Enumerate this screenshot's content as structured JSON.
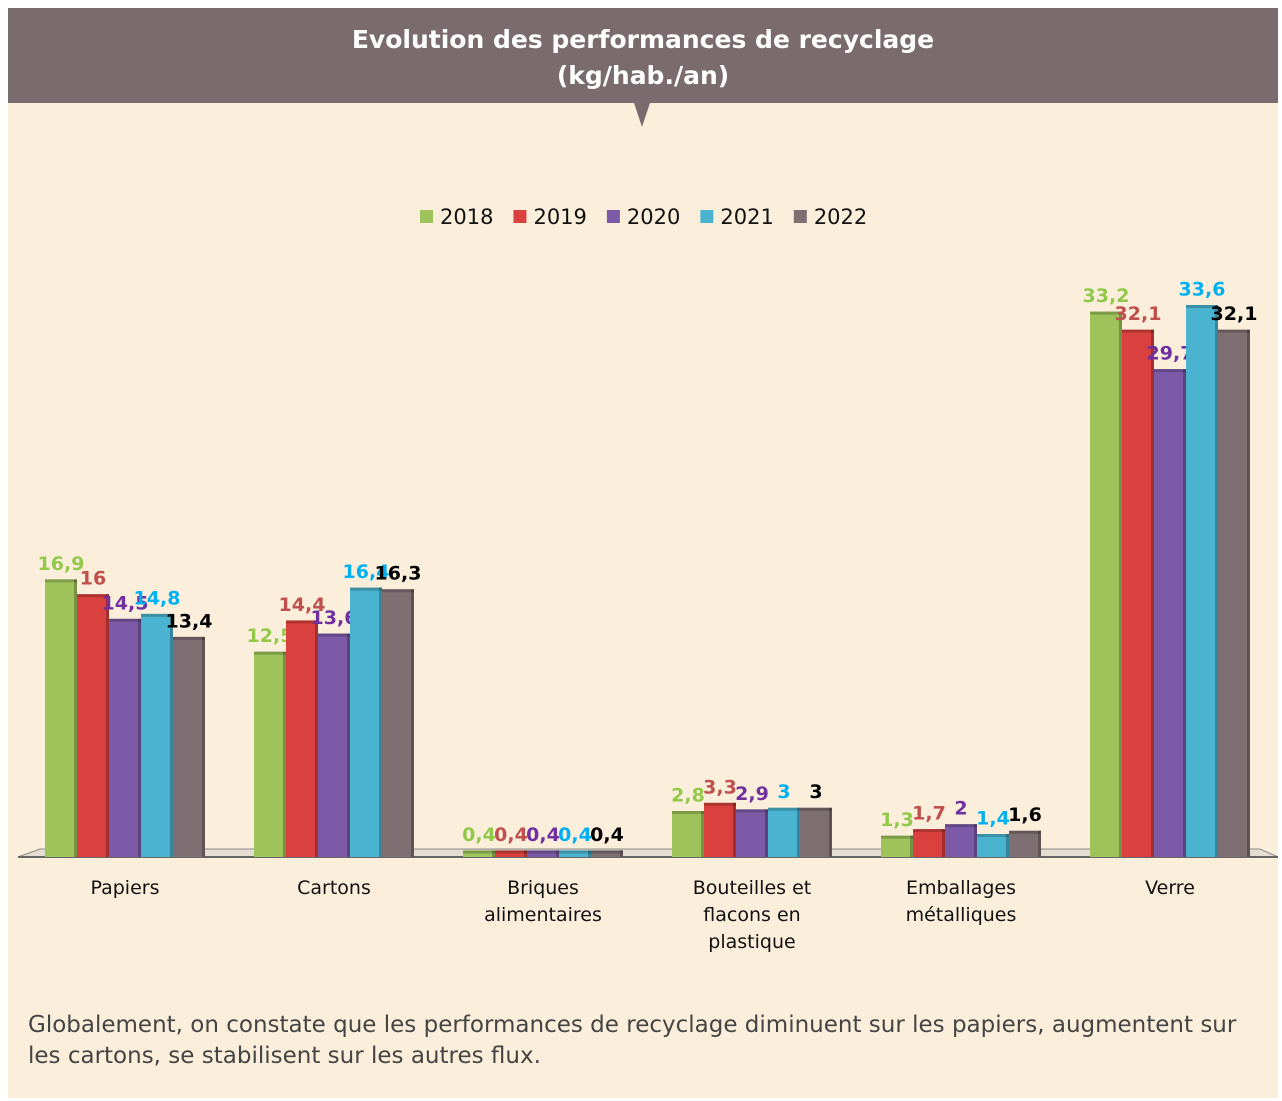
{
  "chart_data": {
    "type": "bar",
    "title": "Evolution des performances de recyclage",
    "subtitle": "(kg/hab./an)",
    "categories": [
      "Papiers",
      "Cartons",
      "Briques alimentaires",
      "Bouteilles et flacons en plastique",
      "Emballages métalliques",
      "Verre"
    ],
    "series": [
      {
        "name": "2018",
        "color": "#9dc35a",
        "label_color": "#92c94a",
        "values": [
          16.9,
          12.5,
          0.4,
          2.8,
          1.3,
          33.2
        ],
        "value_labels": [
          "16,9",
          "12,5",
          "0,4",
          "2,8",
          "1,3",
          "33,2"
        ]
      },
      {
        "name": "2019",
        "color": "#d9403e",
        "label_color": "#c0504d",
        "values": [
          16,
          14.4,
          0.4,
          3.3,
          1.7,
          32.1
        ],
        "value_labels": [
          "16",
          "14,4",
          "0,4",
          "3,3",
          "1,7",
          "32,1"
        ]
      },
      {
        "name": "2020",
        "color": "#7d5aa8",
        "label_color": "#7030a0",
        "values": [
          14.5,
          13.6,
          0.4,
          2.9,
          2,
          29.7
        ],
        "value_labels": [
          "14,5",
          "13,6",
          "0,4",
          "2,9",
          "2",
          "29,7"
        ]
      },
      {
        "name": "2021",
        "color": "#4ab4d0",
        "label_color": "#00b0f0",
        "values": [
          14.8,
          16.4,
          0.4,
          3,
          1.4,
          33.6
        ],
        "value_labels": [
          "14,8",
          "16,4",
          "0,4",
          "3",
          "1,4",
          "33,6"
        ]
      },
      {
        "name": "2022",
        "color": "#7d6f72",
        "label_color": "#000000",
        "values": [
          13.4,
          16.3,
          0.4,
          3,
          1.6,
          32.1
        ],
        "value_labels": [
          "13,4",
          "16,3",
          "0,4",
          "3",
          "1,6",
          "32,1"
        ]
      }
    ],
    "legend": "top",
    "note": "Globalement, on constate que les performances de recyclage diminuent sur les papiers, augmentent sur les cartons, se stabilisent sur les autres flux."
  }
}
